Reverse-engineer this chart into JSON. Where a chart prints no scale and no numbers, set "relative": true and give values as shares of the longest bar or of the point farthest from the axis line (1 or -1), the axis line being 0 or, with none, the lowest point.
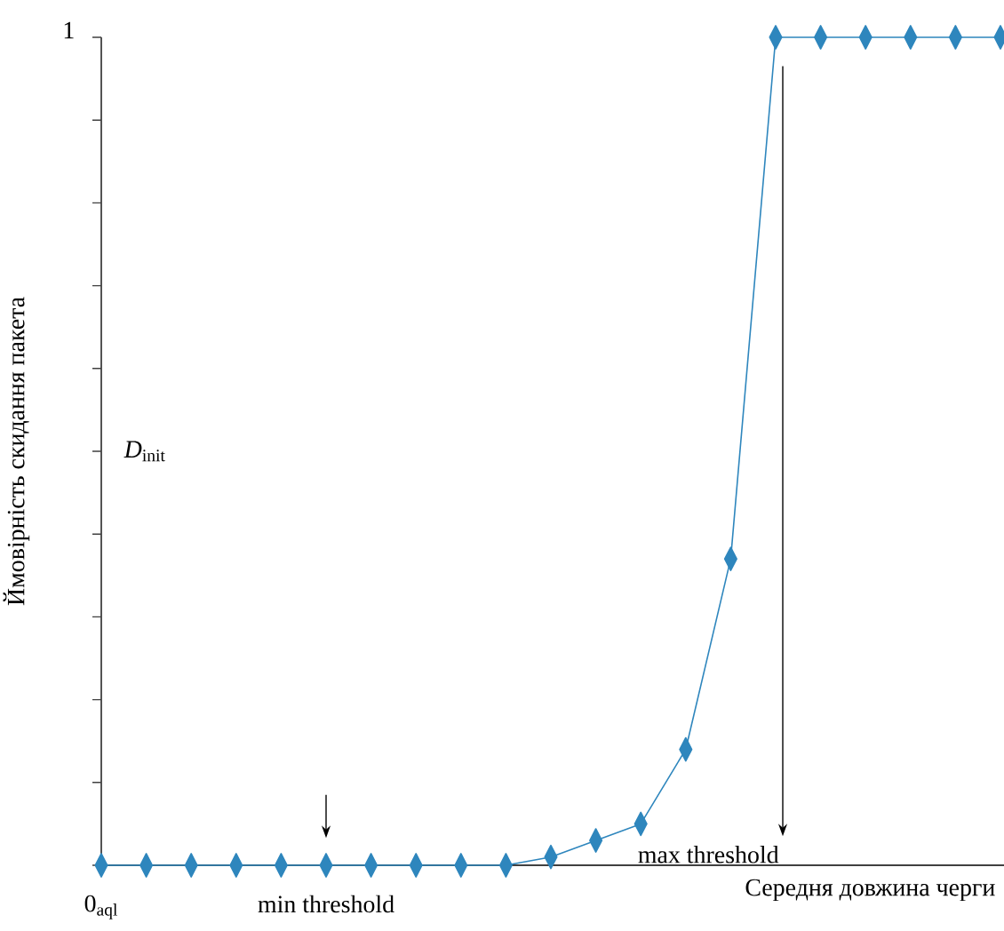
{
  "chart_data": {
    "type": "line",
    "ylabel": "Ймовірність скидання пакета",
    "xlabel": "Середня довжина черги",
    "categories": [
      null,
      null,
      null,
      null,
      null,
      null,
      null,
      null,
      null,
      null,
      null,
      null,
      null,
      null,
      null,
      null,
      null,
      null,
      null,
      null,
      null
    ],
    "series": [
      {
        "color": "#2e86bd",
        "values": [
          0,
          0,
          0,
          0,
          0,
          0,
          0,
          0,
          0,
          0,
          0.01,
          0.03,
          0.05,
          0.14,
          0.37,
          1,
          1,
          1,
          1,
          1,
          1
        ]
      }
    ],
    "relative": true,
    "annotations": [
      "1",
      "0$_{aql}$",
      "*D*$_{init}$",
      "min threshold",
      "max threshold"
    ],
    "marker": "diamond"
  }
}
